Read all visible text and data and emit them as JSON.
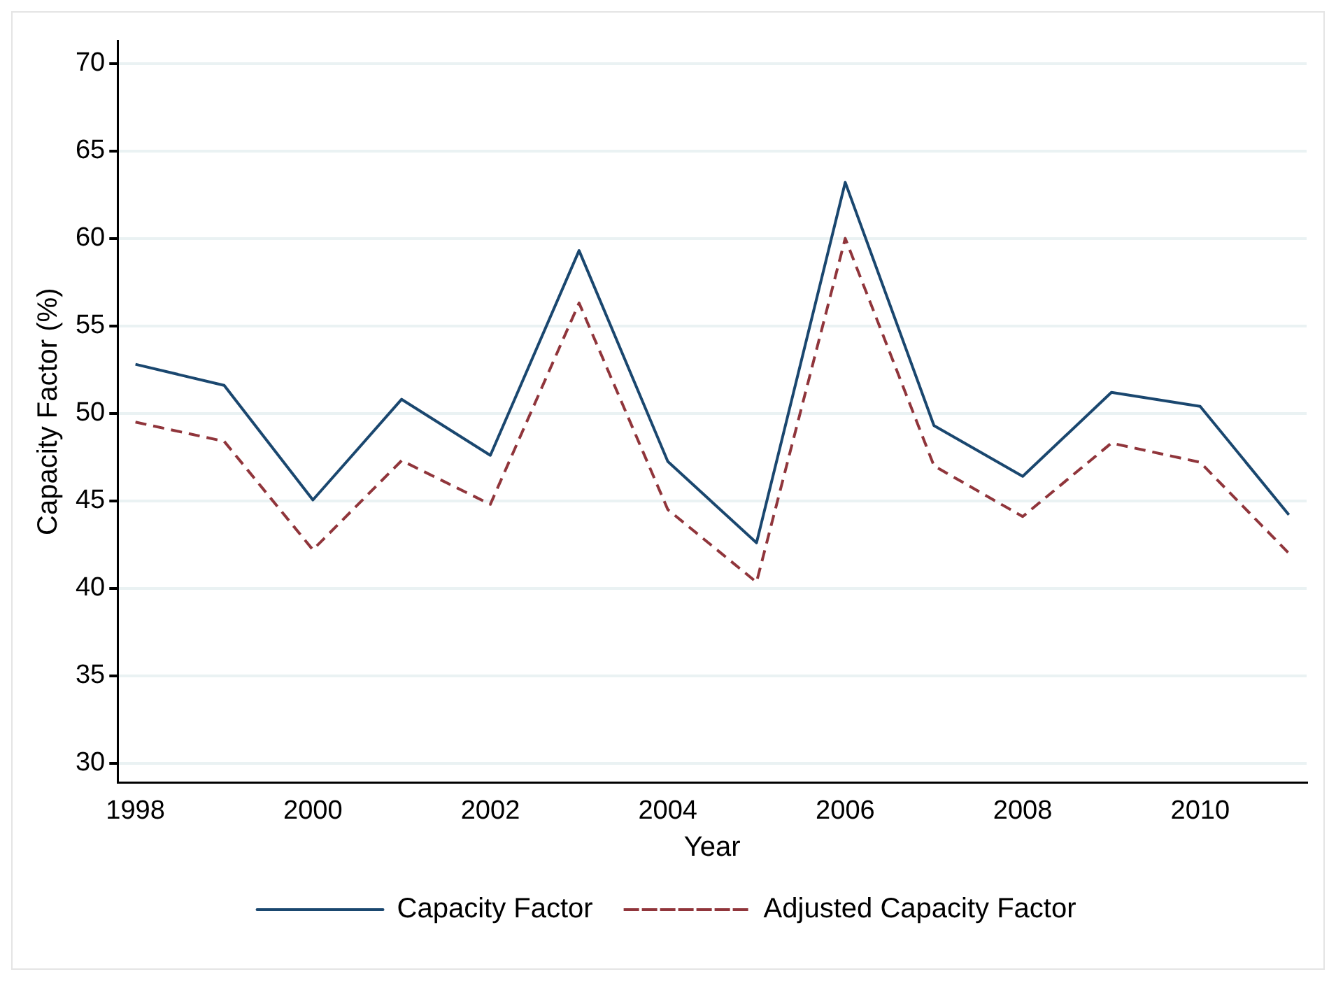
{
  "chart_data": {
    "type": "line",
    "xlabel": "Year",
    "ylabel": "Capacity Factor (%)",
    "x": [
      1998,
      1999,
      2000,
      2001,
      2002,
      2003,
      2004,
      2005,
      2006,
      2007,
      2008,
      2009,
      2010,
      2011
    ],
    "series": [
      {
        "name": "Capacity Factor",
        "color": "#1a476f",
        "line_style": "solid",
        "values": [
          52.8,
          51.6,
          45.05,
          50.8,
          47.6,
          59.3,
          47.25,
          42.6,
          63.2,
          49.3,
          46.4,
          51.2,
          50.4,
          44.2
        ]
      },
      {
        "name": "Adjusted Capacity Factor",
        "color": "#90353b",
        "line_style": "dashed",
        "values": [
          49.5,
          48.4,
          42.2,
          47.3,
          44.8,
          56.3,
          44.5,
          40.35,
          60.0,
          47.0,
          44.1,
          48.3,
          47.2,
          42.0
        ]
      }
    ],
    "xlim": [
      1997.8,
      2011.2
    ],
    "xticks": [
      1998,
      2000,
      2002,
      2004,
      2006,
      2008,
      2010
    ],
    "ylim": [
      28.9,
      71.3
    ],
    "yticks": [
      30,
      35,
      40,
      45,
      50,
      55,
      60,
      65,
      70
    ],
    "grid": "y",
    "legend": "bottom",
    "marker": "none"
  }
}
